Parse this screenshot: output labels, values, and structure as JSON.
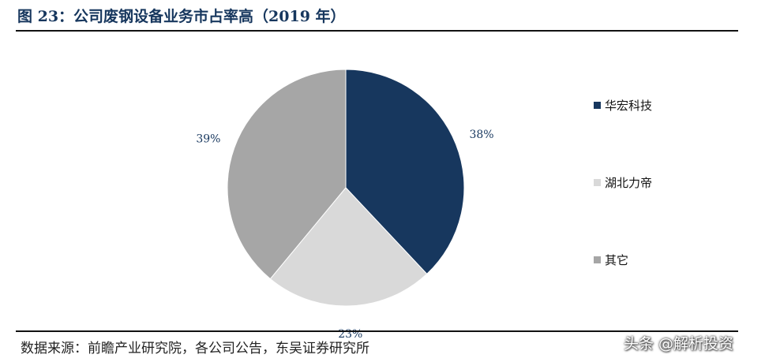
{
  "figure": {
    "title": "图 23：公司废钢设备业务市占率高（2019 年）",
    "source": "数据来源：前瞻产业研究院，各公司公告，东吴证券研究所",
    "watermark": "头条 @解析投资"
  },
  "chart_data": {
    "type": "pie",
    "title": "图 23：公司废钢设备业务市占率高（2019 年）",
    "legend_position": "right",
    "slices": [
      {
        "name": "华宏科技",
        "value": 38,
        "label": "38%",
        "color": "#17375e"
      },
      {
        "name": "湖北力帝",
        "value": 23,
        "label": "23%",
        "color": "#d9d9d9"
      },
      {
        "name": "其它",
        "value": 39,
        "label": "39%",
        "color": "#a6a6a6"
      }
    ]
  }
}
